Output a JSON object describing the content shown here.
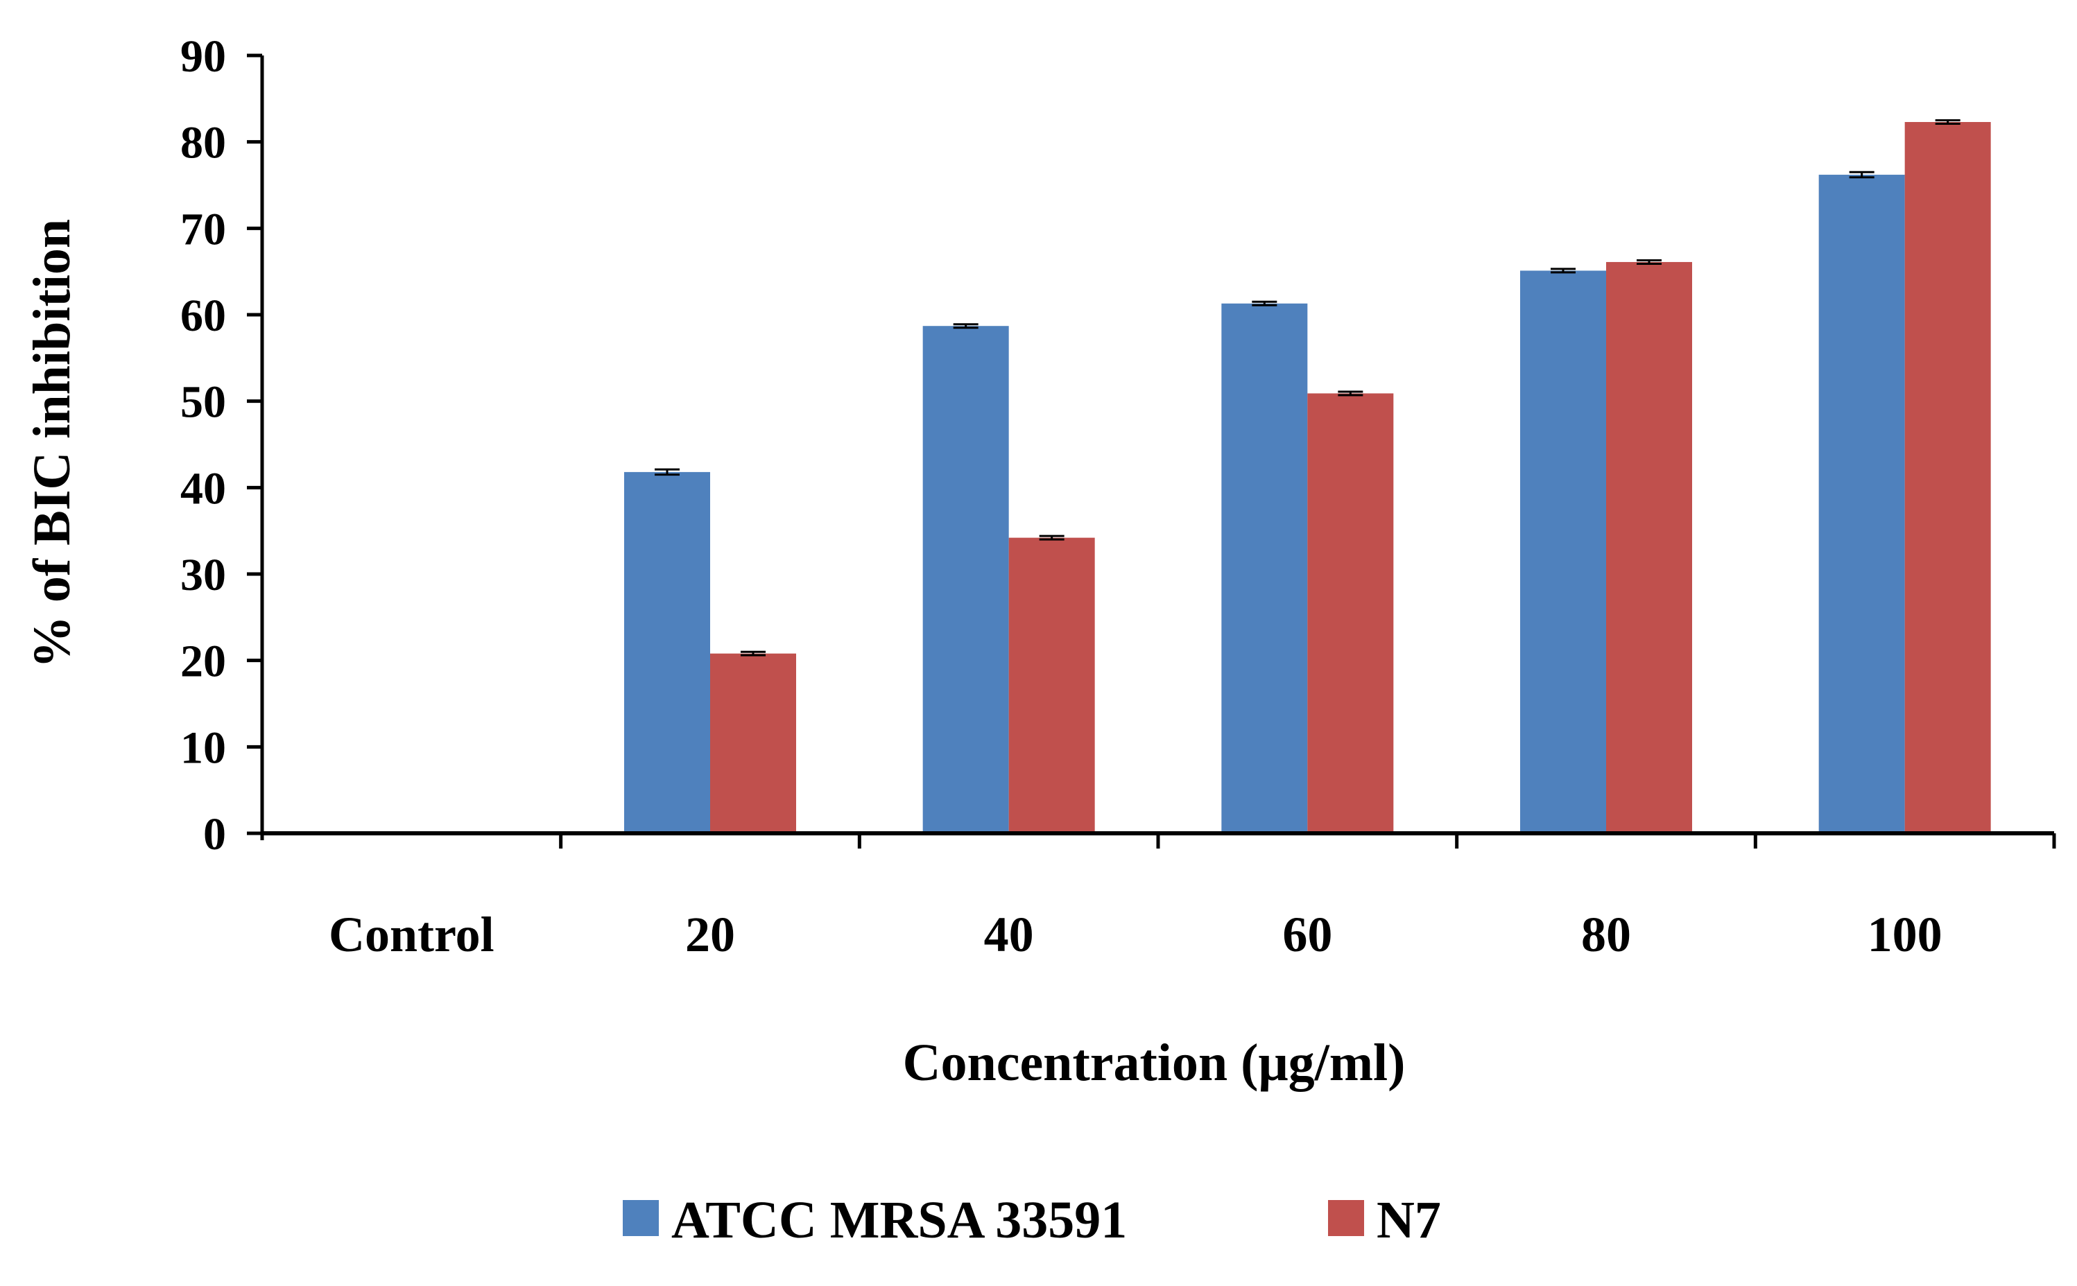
{
  "chart_data": {
    "type": "bar",
    "title": "",
    "xlabel": "Concentration (μg/ml)",
    "ylabel": "% of BIC inhibition",
    "categories": [
      "Control",
      "20",
      "40",
      "60",
      "80",
      "100"
    ],
    "ylim": [
      0,
      90
    ],
    "yticks": [
      0,
      10,
      20,
      30,
      40,
      50,
      60,
      70,
      80,
      90
    ],
    "grid": false,
    "legend_position": "bottom",
    "error_bars": true,
    "series": [
      {
        "name": "ATCC MRSA 33591",
        "color": "#4F81BD",
        "values": [
          0,
          41.8,
          58.7,
          61.3,
          65.1,
          76.2
        ],
        "errors": [
          0,
          0.3,
          0.2,
          0.2,
          0.2,
          0.3
        ]
      },
      {
        "name": "N7",
        "color": "#C0504D",
        "values": [
          0,
          20.8,
          34.2,
          50.9,
          66.1,
          82.3
        ],
        "errors": [
          0,
          0.2,
          0.2,
          0.2,
          0.2,
          0.2
        ]
      }
    ]
  }
}
